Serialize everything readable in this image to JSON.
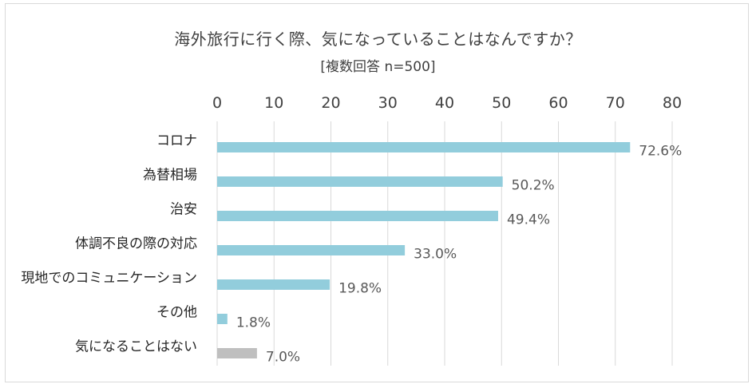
{
  "chart_data": {
    "type": "bar",
    "orientation": "horizontal",
    "title": "海外旅行に行く際、気になっていることはなんですか？",
    "subtitle": "[複数回答 n=500]",
    "xlim": [
      0,
      80
    ],
    "ticks": [
      "0",
      "10",
      "20",
      "30",
      "40",
      "50",
      "60",
      "70",
      "80"
    ],
    "tick_values": [
      0,
      10,
      20,
      30,
      40,
      50,
      60,
      70,
      80
    ],
    "grid": true,
    "categories": [
      "コロナ",
      "為替相場",
      "治安",
      "体調不良の際の対応",
      "現地でのコミュニケーション",
      "その他",
      "気になることはない"
    ],
    "values": [
      72.6,
      50.2,
      49.4,
      33.0,
      19.8,
      1.8,
      7.0
    ],
    "data_labels": [
      "72.6%",
      "50.2%",
      "49.4%",
      "33.0%",
      "19.8%",
      "1.8%",
      "7.0%"
    ],
    "colors": [
      "#92cddc",
      "#92cddc",
      "#92cddc",
      "#92cddc",
      "#92cddc",
      "#92cddc",
      "#bfbfbf"
    ]
  }
}
